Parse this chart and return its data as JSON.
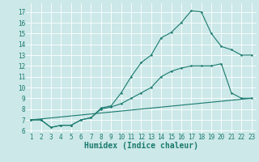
{
  "title": "",
  "xlabel": "Humidex (Indice chaleur)",
  "ylabel": "",
  "bg_color": "#cce8e8",
  "grid_color": "#ffffff",
  "line_color": "#1a7a6e",
  "x_ticks": [
    1,
    2,
    3,
    4,
    5,
    6,
    7,
    8,
    9,
    10,
    11,
    12,
    13,
    14,
    15,
    16,
    17,
    18,
    19,
    20,
    21,
    22,
    23
  ],
  "y_ticks": [
    6,
    7,
    8,
    9,
    10,
    11,
    12,
    13,
    14,
    15,
    16,
    17
  ],
  "xlim": [
    0.5,
    23.5
  ],
  "ylim": [
    5.8,
    17.8
  ],
  "line1_x": [
    1,
    2,
    3,
    4,
    5,
    6,
    7,
    8,
    9,
    10,
    11,
    12,
    13,
    14,
    15,
    16,
    17,
    18,
    19,
    20,
    21,
    22,
    23
  ],
  "line1_y": [
    7.0,
    7.0,
    6.3,
    6.5,
    6.5,
    7.0,
    7.2,
    8.1,
    8.3,
    9.5,
    11.0,
    12.3,
    13.0,
    14.6,
    15.1,
    16.0,
    17.1,
    17.0,
    15.0,
    13.8,
    13.5,
    13.0,
    13.0
  ],
  "line2_x": [
    1,
    2,
    3,
    4,
    5,
    6,
    7,
    8,
    9,
    10,
    11,
    12,
    13,
    14,
    15,
    16,
    17,
    18,
    19,
    20,
    21,
    22,
    23
  ],
  "line2_y": [
    7.0,
    7.0,
    6.3,
    6.5,
    6.5,
    7.0,
    7.2,
    8.0,
    8.2,
    8.5,
    9.0,
    9.5,
    10.0,
    11.0,
    11.5,
    11.8,
    12.0,
    12.0,
    12.0,
    12.2,
    9.5,
    9.0,
    9.0
  ],
  "line3_x": [
    1,
    23
  ],
  "line3_y": [
    7.0,
    9.0
  ],
  "tick_fontsize": 5.5,
  "label_fontsize": 7
}
